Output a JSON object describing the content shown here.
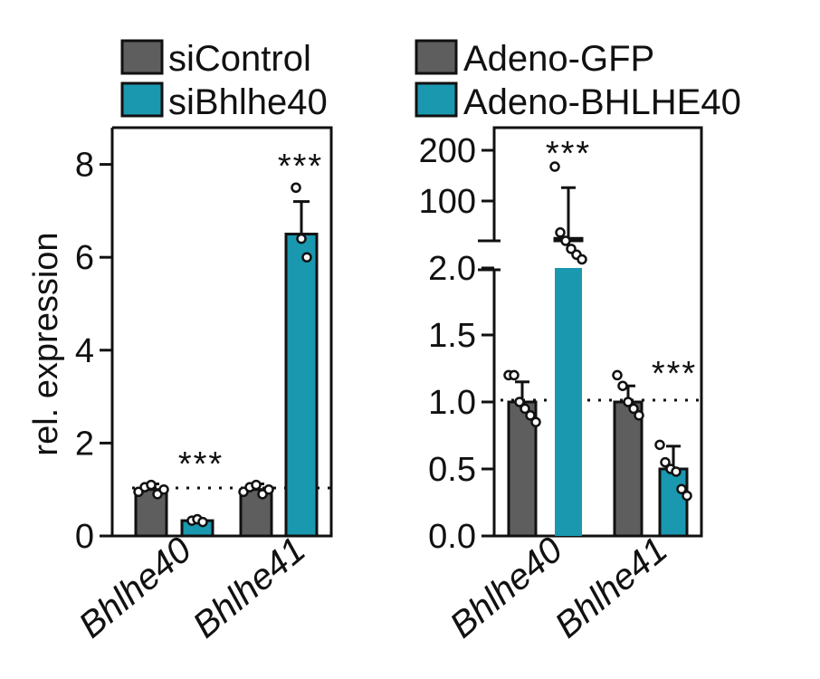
{
  "chart_data": [
    {
      "type": "bar",
      "panel": "left",
      "ylabel": "rel. expression",
      "ylim": [
        0,
        8.8
      ],
      "yticks": [
        0,
        2,
        4,
        6,
        8
      ],
      "categories": [
        "Bhlhe40",
        "Bhlhe41"
      ],
      "reference_line": 1,
      "legend": [
        "siControl",
        "siBhlhe40"
      ],
      "series": [
        {
          "name": "siControl",
          "color": "#5e5e5e",
          "values": [
            1.0,
            1.0
          ],
          "errors": [
            0.12,
            0.12
          ],
          "points": [
            [
              0.95,
              1.05,
              1.1,
              0.9,
              1.0
            ],
            [
              0.95,
              1.05,
              1.1,
              0.9,
              1.0
            ]
          ]
        },
        {
          "name": "siBhlhe40",
          "color": "#1a98b0",
          "values": [
            0.33,
            6.5
          ],
          "errors": [
            0.04,
            0.7
          ],
          "points": [
            [
              0.33,
              0.36,
              0.3
            ],
            [
              7.5,
              6.4,
              6.0
            ]
          ]
        }
      ],
      "annotations": [
        {
          "category": "Bhlhe40",
          "series": "siBhlhe40",
          "text": "***"
        },
        {
          "category": "Bhlhe41",
          "series": "siBhlhe40",
          "text": "***"
        }
      ]
    },
    {
      "type": "bar",
      "panel": "right",
      "axis_break": true,
      "lower_ylim": [
        0,
        2.0
      ],
      "lower_yticks": [
        "0.0",
        "0.5",
        "1.0",
        "1.5",
        "2.0"
      ],
      "upper_yticks": [
        "100",
        "200"
      ],
      "categories": [
        "Bhlhe40",
        "Bhlhe41"
      ],
      "reference_line": 1,
      "legend": [
        "Adeno-GFP",
        "Adeno-BHLHE40"
      ],
      "series": [
        {
          "name": "Adeno-GFP",
          "color": "#5e5e5e",
          "values": [
            1.0,
            1.0
          ],
          "errors": [
            0.15,
            0.12
          ],
          "points": [
            [
              1.2,
              1.2,
              1.0,
              0.95,
              0.9,
              0.85
            ],
            [
              1.2,
              1.12,
              1.0,
              0.95,
              0.9
            ]
          ]
        },
        {
          "name": "Adeno-BHLHE40",
          "color": "#1a98b0",
          "values": [
            60,
            0.5
          ],
          "errors": [
            60,
            0.17
          ],
          "points": [
            [
              160,
              65,
              58,
              52,
              48,
              45
            ],
            [
              0.68,
              0.55,
              0.5,
              0.48,
              0.35,
              0.3
            ]
          ]
        }
      ],
      "annotations": [
        {
          "category": "Bhlhe40",
          "series": "Adeno-BHLHE40",
          "text": "***"
        },
        {
          "category": "Bhlhe41",
          "series": "Adeno-BHLHE40",
          "text": "***"
        }
      ]
    }
  ]
}
